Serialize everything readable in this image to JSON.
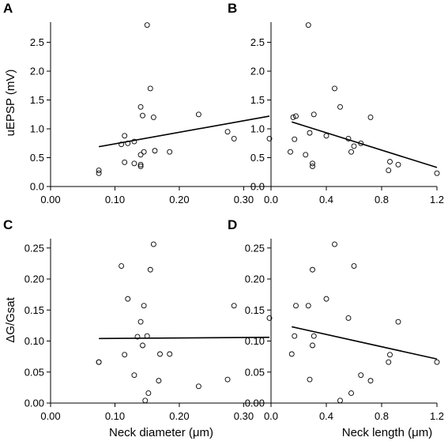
{
  "chart_data": [
    {
      "panel": "A",
      "type": "scatter",
      "xlabel": "",
      "ylabel": "uEPSP (mV)",
      "xlim": [
        0,
        0.34
      ],
      "ylim": [
        0,
        2.85
      ],
      "xticks": [
        "0.00",
        "0.10",
        "0.20",
        "0.30"
      ],
      "xtick_values": [
        0,
        0.1,
        0.2,
        0.3
      ],
      "yticks": [
        "0.0",
        "0.5",
        "1.0",
        "1.5",
        "2.0",
        "2.5"
      ],
      "ytick_values": [
        0,
        0.5,
        1.0,
        1.5,
        2.0,
        2.5
      ],
      "x": [
        0.075,
        0.075,
        0.11,
        0.115,
        0.115,
        0.12,
        0.13,
        0.13,
        0.14,
        0.14,
        0.14,
        0.14,
        0.143,
        0.145,
        0.15,
        0.155,
        0.16,
        0.162,
        0.185,
        0.23,
        0.275,
        0.285,
        0.34
      ],
      "y": [
        0.28,
        0.23,
        0.73,
        0.88,
        0.42,
        0.75,
        0.4,
        0.78,
        0.38,
        0.35,
        0.55,
        1.38,
        1.23,
        0.6,
        2.8,
        1.7,
        1.2,
        0.62,
        0.6,
        1.25,
        0.95,
        0.83,
        0.83
      ],
      "fit": [
        [
          0.075,
          0.69
        ],
        [
          0.34,
          1.22
        ]
      ]
    },
    {
      "panel": "B",
      "type": "scatter",
      "xlabel": "",
      "ylabel": "",
      "xlim": [
        0,
        1.2
      ],
      "ylim": [
        0,
        2.85
      ],
      "xticks": [
        "0.0",
        "0.4",
        "0.8",
        "1.2"
      ],
      "xtick_values": [
        0,
        0.4,
        0.8,
        1.2
      ],
      "yticks": [
        "0.0",
        "0.5",
        "1.0",
        "1.5",
        "2.0",
        "2.5"
      ],
      "ytick_values": [
        0,
        0.5,
        1.0,
        1.5,
        2.0,
        2.5
      ],
      "x": [
        0.14,
        0.16,
        0.17,
        0.18,
        0.25,
        0.27,
        0.28,
        0.3,
        0.3,
        0.31,
        0.4,
        0.46,
        0.5,
        0.56,
        0.58,
        0.6,
        0.65,
        0.72,
        0.85,
        0.86,
        0.92,
        1.2
      ],
      "y": [
        0.6,
        1.2,
        0.82,
        1.22,
        0.55,
        2.8,
        0.93,
        0.35,
        0.4,
        1.25,
        0.88,
        1.7,
        1.38,
        0.83,
        0.6,
        0.7,
        0.75,
        1.2,
        0.28,
        0.43,
        0.38,
        0.23
      ],
      "fit": [
        [
          0.15,
          1.12
        ],
        [
          1.2,
          0.33
        ]
      ]
    },
    {
      "panel": "C",
      "type": "scatter",
      "xlabel": "Neck diameter (μm)",
      "ylabel": "ΔG/Gsat",
      "xlim": [
        0,
        0.34
      ],
      "ylim": [
        0,
        0.265
      ],
      "xticks": [
        "0.00",
        "0.10",
        "0.20",
        "0.30"
      ],
      "xtick_values": [
        0,
        0.1,
        0.2,
        0.3
      ],
      "yticks": [
        "0.00",
        "0.05",
        "0.10",
        "0.15",
        "0.20",
        "0.25"
      ],
      "ytick_values": [
        0,
        0.05,
        0.1,
        0.15,
        0.2,
        0.25
      ],
      "x": [
        0.075,
        0.075,
        0.11,
        0.115,
        0.12,
        0.13,
        0.135,
        0.14,
        0.143,
        0.145,
        0.147,
        0.15,
        0.152,
        0.155,
        0.16,
        0.168,
        0.17,
        0.185,
        0.23,
        0.275,
        0.285,
        0.34
      ],
      "y": [
        0.066,
        0.066,
        0.221,
        0.078,
        0.168,
        0.045,
        0.107,
        0.131,
        0.093,
        0.157,
        0.004,
        0.108,
        0.016,
        0.215,
        0.256,
        0.036,
        0.079,
        0.079,
        0.027,
        0.038,
        0.157,
        0.137
      ],
      "fit": [
        [
          0.075,
          0.104
        ],
        [
          0.34,
          0.106
        ]
      ]
    },
    {
      "panel": "D",
      "type": "scatter",
      "xlabel": "Neck length (μm)",
      "ylabel": "",
      "xlim": [
        0,
        1.2
      ],
      "ylim": [
        0,
        0.265
      ],
      "xticks": [
        "0.0",
        "0.4",
        "0.8",
        "1.2"
      ],
      "xtick_values": [
        0,
        0.4,
        0.8,
        1.2
      ],
      "yticks": [
        "0.00",
        "0.05",
        "0.10",
        "0.15",
        "0.20",
        "0.25"
      ],
      "ytick_values": [
        0,
        0.05,
        0.1,
        0.15,
        0.2,
        0.25
      ],
      "x": [
        0.15,
        0.17,
        0.18,
        0.27,
        0.28,
        0.3,
        0.3,
        0.31,
        0.4,
        0.46,
        0.5,
        0.56,
        0.58,
        0.6,
        0.65,
        0.72,
        0.85,
        0.86,
        0.92,
        1.2
      ],
      "y": [
        0.079,
        0.108,
        0.157,
        0.157,
        0.038,
        0.093,
        0.215,
        0.108,
        0.168,
        0.256,
        0.004,
        0.137,
        0.016,
        0.221,
        0.045,
        0.036,
        0.066,
        0.078,
        0.131,
        0.066
      ],
      "fit": [
        [
          0.15,
          0.123
        ],
        [
          1.2,
          0.071
        ]
      ]
    }
  ]
}
